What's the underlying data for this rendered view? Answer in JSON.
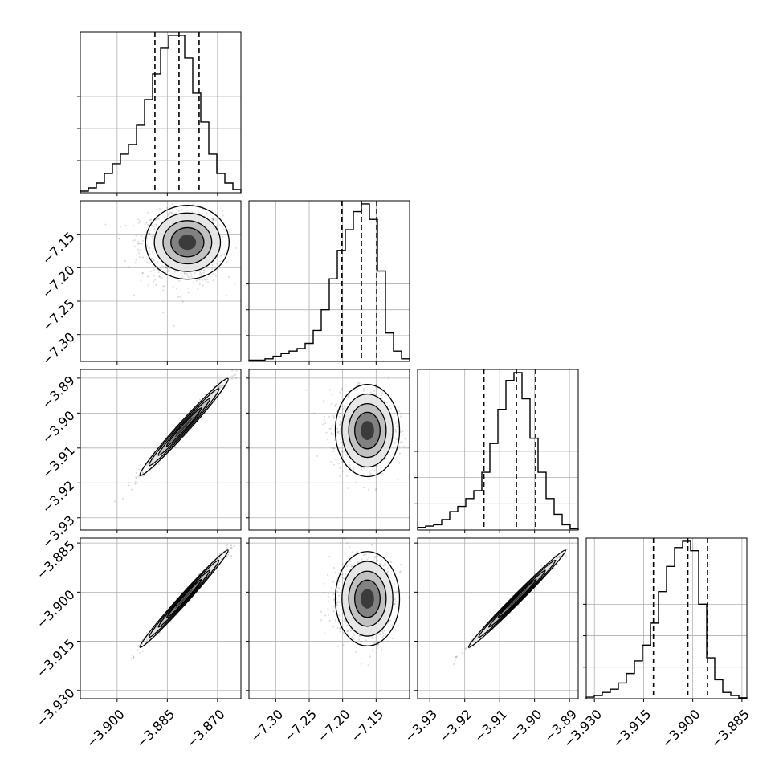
{
  "chart_data": {
    "type": "corner",
    "grid": true,
    "colors": {
      "ink": "#000000",
      "grid": "#b0b0b0"
    },
    "params": [
      {
        "range": [
          -3.911,
          -3.863
        ],
        "ticks": [
          -3.9,
          -3.885,
          -3.87
        ],
        "tick_labels": [
          "−3.900",
          "−3.885",
          "−3.870"
        ],
        "quantiles": [
          -3.8887,
          -3.8815,
          -3.8755
        ],
        "histogram": [
          0.5,
          1.5,
          3,
          6,
          9,
          12,
          15,
          21,
          29,
          37,
          45,
          49,
          49,
          42,
          31,
          22,
          12,
          6,
          3,
          1
        ],
        "hist_ticks": [
          10,
          20,
          30
        ]
      },
      {
        "range": [
          -7.34,
          -7.1
        ],
        "ticks": [
          -7.3,
          -7.25,
          -7.2,
          -7.15
        ],
        "tick_labels": [
          "−7.30",
          "−7.25",
          "−7.20",
          "−7.15"
        ],
        "quantiles": [
          -7.201,
          -7.172,
          -7.149
        ],
        "histogram": [
          0.5,
          0.5,
          1,
          2,
          3,
          4,
          5,
          7,
          12,
          20,
          32,
          43,
          51,
          58,
          61,
          55,
          35,
          11,
          4,
          1
        ],
        "hist_ticks": [
          10,
          20,
          30
        ]
      },
      {
        "range": [
          -3.9335,
          -3.8875
        ],
        "ticks": [
          -3.93,
          -3.92,
          -3.91,
          -3.9,
          -3.89
        ],
        "tick_labels": [
          "−3.93",
          "−3.92",
          "−3.91",
          "−3.90",
          "−3.89"
        ],
        "quantiles": [
          -3.9145,
          -3.9052,
          -3.8997
        ],
        "histogram": [
          1,
          1.5,
          2,
          4,
          7,
          9,
          12,
          15,
          22,
          33,
          46,
          57,
          60,
          50,
          35,
          22,
          12,
          6,
          2,
          0.5
        ],
        "hist_ticks": [
          10,
          20,
          30
        ]
      },
      {
        "range": [
          -3.9325,
          -3.8835
        ],
        "ticks": [
          -3.93,
          -3.915,
          -3.9,
          -3.885
        ],
        "tick_labels": [
          "−3.930",
          "−3.915",
          "−3.900",
          "−3.885"
        ],
        "quantiles": [
          -3.912,
          -3.9015,
          -3.8955
        ],
        "histogram": [
          0.5,
          1,
          2,
          3,
          5,
          8,
          12,
          17,
          24,
          34,
          42,
          48,
          50,
          47,
          30,
          13,
          6,
          2,
          1,
          0.3
        ],
        "hist_ticks": [
          10,
          20,
          30
        ]
      }
    ],
    "pairs": [
      {
        "row": 1,
        "col": 0,
        "center": [
          -3.879,
          -7.162
        ],
        "sigma": [
          0.0052,
          0.023
        ],
        "rho": 0.0,
        "skew": [
          -0.35,
          -0.35
        ]
      },
      {
        "row": 2,
        "col": 0,
        "center": [
          -3.88,
          -3.904
        ],
        "sigma": [
          0.0055,
          0.0058
        ],
        "rho": 0.985,
        "skew": [
          0,
          0
        ]
      },
      {
        "row": 2,
        "col": 1,
        "center": [
          -7.163,
          -3.905
        ],
        "sigma": [
          0.02,
          0.0055
        ],
        "rho": 0.0,
        "skew": [
          -0.35,
          0.0
        ]
      },
      {
        "row": 3,
        "col": 0,
        "center": [
          -3.88,
          -3.902
        ],
        "sigma": [
          0.0055,
          0.0062
        ],
        "rho": 0.99,
        "skew": [
          0,
          0
        ]
      },
      {
        "row": 3,
        "col": 1,
        "center": [
          -7.163,
          -3.902
        ],
        "sigma": [
          0.02,
          0.006
        ],
        "rho": 0.0,
        "skew": [
          -0.35,
          0.0
        ]
      },
      {
        "row": 3,
        "col": 2,
        "center": [
          -3.905,
          -3.902
        ],
        "sigma": [
          0.0058,
          0.0062
        ],
        "rho": 0.992,
        "skew": [
          0,
          0
        ]
      }
    ]
  }
}
